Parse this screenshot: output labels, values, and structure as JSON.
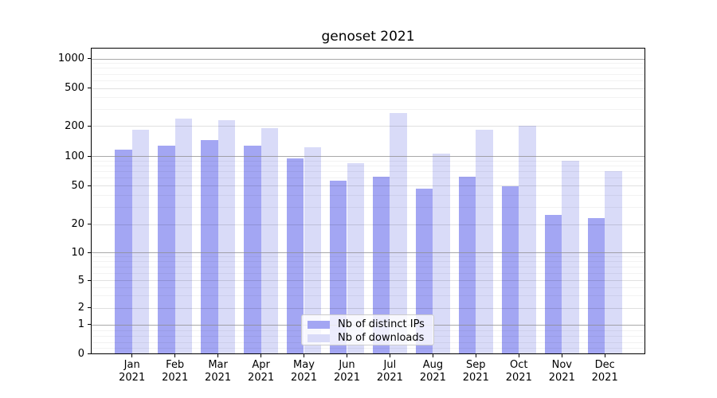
{
  "chart_data": {
    "type": "bar",
    "title": "genoset 2021",
    "categories": [
      "Jan 2021",
      "Feb 2021",
      "Mar 2021",
      "Apr 2021",
      "May 2021",
      "Jun 2021",
      "Jul 2021",
      "Aug 2021",
      "Sep 2021",
      "Oct 2021",
      "Nov 2021",
      "Dec 2021"
    ],
    "series": [
      {
        "name": "Nb of distinct IPs",
        "color": "#a3a6f3",
        "values": [
          115,
          126,
          145,
          127,
          95,
          56,
          61,
          46,
          61,
          49,
          25,
          23
        ]
      },
      {
        "name": "Nb of downloads",
        "color": "#d9dbf8",
        "values": [
          182,
          240,
          230,
          190,
          122,
          85,
          270,
          105,
          183,
          202,
          90,
          70
        ]
      }
    ],
    "xlabel": "",
    "ylabel": "",
    "y_scale": "symlog",
    "y_ticks": [
      0,
      1,
      2,
      5,
      10,
      20,
      50,
      100,
      200,
      500,
      1000
    ],
    "ylim": [
      0,
      1300
    ],
    "grid": true,
    "legend_position": "lower center"
  }
}
